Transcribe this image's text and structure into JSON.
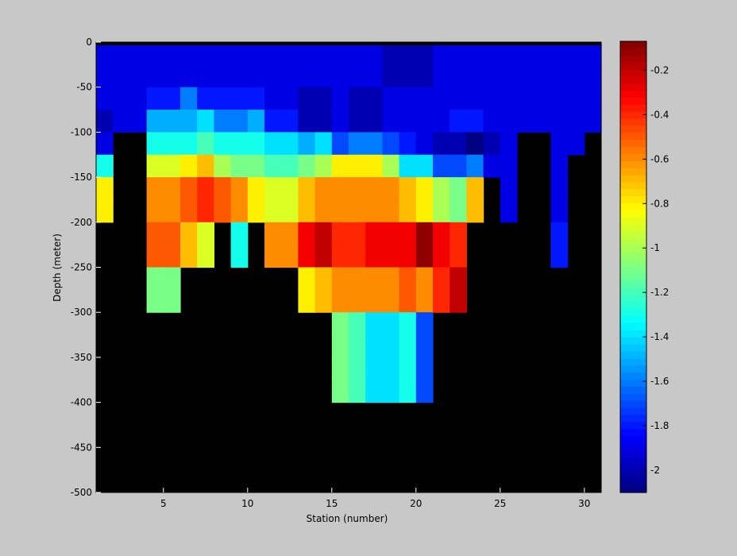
{
  "chart_data": [
    {
      "type": "heatmap",
      "xlabel": "Station (number)",
      "ylabel": "Depth (meter)",
      "xlim": [
        1,
        31
      ],
      "ylim": [
        -500,
        0
      ],
      "xticks": [
        5,
        10,
        15,
        20,
        25,
        30
      ],
      "yticks": [
        0,
        -50,
        -100,
        -150,
        -200,
        -250,
        -300,
        -350,
        -400,
        -450,
        -500
      ],
      "background_color": "#000000",
      "x_bin_width": 1,
      "depths": [
        -25,
        -50,
        -75,
        -100,
        -125,
        -150,
        -175,
        -200,
        -225,
        -250,
        -275,
        -300,
        -325,
        -350,
        -375,
        -400
      ],
      "columns": [
        {
          "station": 1,
          "values": [
            -1.9,
            -1.9,
            -1.9,
            -2.0,
            -1.9,
            -1.3,
            -0.8,
            -0.8
          ]
        },
        {
          "station": 2,
          "values": [
            -1.9,
            -1.9,
            -1.9,
            -1.9
          ]
        },
        {
          "station": 3,
          "values": [
            -1.9,
            -1.9,
            -1.9,
            -1.9
          ]
        },
        {
          "station": 4,
          "values": [
            -1.9,
            -1.9,
            -1.8,
            -1.5,
            -1.3,
            -0.9,
            -0.6,
            -0.6,
            -0.5,
            -0.5,
            -1.1,
            -1.1
          ]
        },
        {
          "station": 5,
          "values": [
            -1.9,
            -1.9,
            -1.8,
            -1.5,
            -1.3,
            -0.9,
            -0.6,
            -0.6,
            -0.5,
            -0.5,
            -1.1,
            -1.1
          ]
        },
        {
          "station": 6,
          "values": [
            -1.9,
            -1.9,
            -1.6,
            -1.5,
            -1.3,
            -0.8,
            -0.5,
            -0.5,
            -0.7,
            -0.7
          ]
        },
        {
          "station": 7,
          "values": [
            -1.9,
            -1.9,
            -1.8,
            -1.4,
            -1.2,
            -0.7,
            -0.4,
            -0.4,
            -0.9,
            -0.9
          ]
        },
        {
          "station": 8,
          "values": [
            -1.9,
            -1.9,
            -1.8,
            -1.6,
            -1.3,
            -1.0,
            -0.5,
            -0.5
          ]
        },
        {
          "station": 9,
          "values": [
            -1.9,
            -1.9,
            -1.8,
            -1.6,
            -1.3,
            -1.1,
            -0.6,
            -0.6,
            -1.3,
            -1.3
          ]
        },
        {
          "station": 10,
          "values": [
            -1.9,
            -1.9,
            -1.8,
            -1.5,
            -1.3,
            -1.1,
            -0.8,
            -0.8
          ]
        },
        {
          "station": 11,
          "values": [
            -1.9,
            -1.9,
            -1.9,
            -1.8,
            -1.4,
            -1.2,
            -0.9,
            -0.9,
            -0.6,
            -0.6
          ]
        },
        {
          "station": 12,
          "values": [
            -1.9,
            -1.9,
            -1.9,
            -1.8,
            -1.4,
            -1.2,
            -0.9,
            -0.9,
            -0.6,
            -0.6
          ]
        },
        {
          "station": 13,
          "values": [
            -1.9,
            -1.9,
            -2.0,
            -2.0,
            -1.5,
            -1.1,
            -0.7,
            -0.7,
            -0.3,
            -0.3,
            -0.8,
            -0.8
          ]
        },
        {
          "station": 14,
          "values": [
            -1.9,
            -1.9,
            -2.0,
            -2.0,
            -1.4,
            -1.0,
            -0.6,
            -0.6,
            -0.2,
            -0.2,
            -0.7,
            -0.7
          ]
        },
        {
          "station": 15,
          "values": [
            -1.9,
            -1.9,
            -1.9,
            -1.9,
            -1.7,
            -0.8,
            -0.6,
            -0.6,
            -0.4,
            -0.4,
            -0.6,
            -0.6,
            -1.1,
            -1.1,
            -1.1,
            -1.1
          ]
        },
        {
          "station": 16,
          "values": [
            -1.9,
            -1.9,
            -2.0,
            -2.0,
            -1.6,
            -0.8,
            -0.6,
            -0.6,
            -0.4,
            -0.4,
            -0.6,
            -0.6,
            -1.2,
            -1.2,
            -1.2,
            -1.2
          ]
        },
        {
          "station": 17,
          "values": [
            -1.9,
            -1.9,
            -2.0,
            -2.0,
            -1.6,
            -0.8,
            -0.6,
            -0.6,
            -0.3,
            -0.3,
            -0.6,
            -0.6,
            -1.4,
            -1.4,
            -1.4,
            -1.4
          ]
        },
        {
          "station": 18,
          "values": [
            -2.0,
            -2.0,
            -1.9,
            -1.9,
            -1.7,
            -1.0,
            -0.6,
            -0.6,
            -0.3,
            -0.3,
            -0.6,
            -0.6,
            -1.4,
            -1.4,
            -1.4,
            -1.4
          ]
        },
        {
          "station": 19,
          "values": [
            -2.0,
            -2.0,
            -1.9,
            -1.9,
            -1.8,
            -1.4,
            -0.7,
            -0.7,
            -0.3,
            -0.3,
            -0.5,
            -0.5,
            -1.3,
            -1.3,
            -1.3,
            -1.3
          ]
        },
        {
          "station": 20,
          "values": [
            -2.0,
            -2.0,
            -1.9,
            -1.9,
            -1.9,
            -1.4,
            -0.8,
            -0.8,
            -0.1,
            -0.1,
            -0.6,
            -0.6,
            -1.7,
            -1.7,
            -1.7,
            -1.7
          ]
        },
        {
          "station": 21,
          "values": [
            -1.9,
            -1.9,
            -1.9,
            -1.9,
            -2.0,
            -1.7,
            -1.0,
            -1.0,
            -0.3,
            -0.3,
            -0.4,
            -0.4
          ]
        },
        {
          "station": 22,
          "values": [
            -1.9,
            -1.9,
            -1.9,
            -1.8,
            -2.0,
            -1.7,
            -1.1,
            -1.1,
            -0.4,
            -0.4,
            -0.2,
            -0.2
          ]
        },
        {
          "station": 23,
          "values": [
            -1.9,
            -1.9,
            -1.9,
            -1.8,
            -2.1,
            -1.6,
            -0.7,
            -0.7
          ]
        },
        {
          "station": 24,
          "values": [
            -1.9,
            -1.9,
            -1.9,
            -1.9,
            -2.0,
            -1.9
          ]
        },
        {
          "station": 25,
          "values": [
            -1.9,
            -1.9,
            -1.9,
            -1.9,
            -1.9,
            -1.9,
            -1.9,
            -1.9
          ]
        },
        {
          "station": 26,
          "values": [
            -1.9,
            -1.9,
            -1.9,
            -1.9
          ]
        },
        {
          "station": 27,
          "values": [
            -1.9,
            -1.9,
            -1.9,
            -1.9
          ]
        },
        {
          "station": 28,
          "values": [
            -1.9,
            -1.9,
            -1.9,
            -1.9,
            -1.9,
            -1.9,
            -1.9,
            -1.9,
            -1.8,
            -1.8
          ]
        },
        {
          "station": 29,
          "values": [
            -1.9,
            -1.9,
            -1.9,
            -1.9,
            -1.9
          ]
        },
        {
          "station": 30,
          "values": [
            -1.9,
            -1.9,
            -1.9,
            -1.9
          ]
        }
      ]
    },
    {
      "type": "colorbar",
      "colormap": "jet",
      "clim": [
        -2.1,
        -0.07
      ],
      "ticks": [
        -0.2,
        -0.4,
        -0.6,
        -0.8,
        -1,
        -1.2,
        -1.4,
        -1.6,
        -1.8,
        -2
      ]
    }
  ]
}
